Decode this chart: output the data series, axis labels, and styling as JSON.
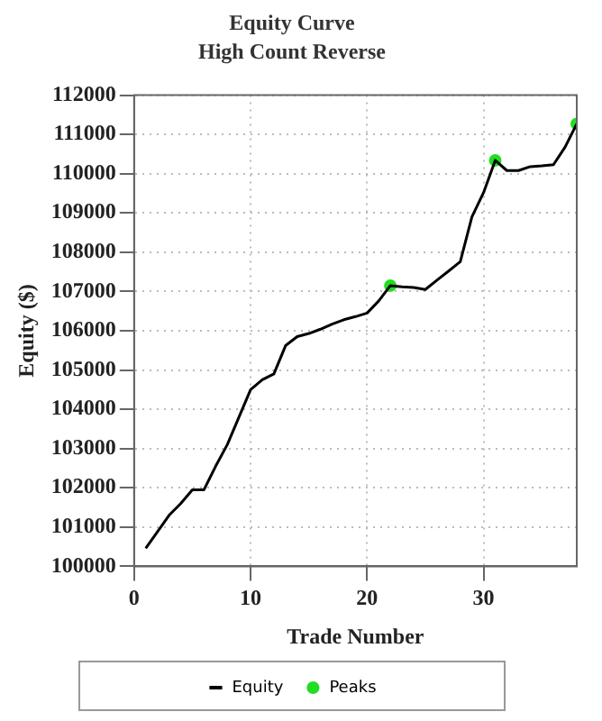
{
  "chart_data": {
    "type": "line",
    "title": "Equity Curve",
    "subtitle": "High Count Reverse",
    "xlabel": "Trade Number",
    "ylabel": "Equity ($)",
    "series": [
      {
        "name": "Equity",
        "type": "line",
        "color": "#000000",
        "x": [
          1,
          2,
          3,
          4,
          5,
          6,
          7,
          8,
          9,
          10,
          11,
          12,
          13,
          14,
          15,
          16,
          17,
          18,
          19,
          20,
          21,
          22,
          23,
          24,
          25,
          26,
          27,
          28,
          29,
          30,
          31,
          32,
          33,
          34,
          35,
          36,
          37,
          38
        ],
        "values": [
          100460,
          100880,
          101300,
          101600,
          101950,
          101950,
          102550,
          103100,
          103800,
          104500,
          104750,
          104900,
          105620,
          105850,
          105930,
          106040,
          106170,
          106280,
          106360,
          106450,
          106760,
          107150,
          107120,
          107100,
          107050,
          107290,
          107520,
          107760,
          108900,
          109520,
          110340,
          110080,
          110080,
          110180,
          110200,
          110230,
          110680,
          111270
        ],
        "marker": "none"
      },
      {
        "name": "Peaks",
        "type": "scatter",
        "color": "#22dd22",
        "x": [
          22,
          31,
          38
        ],
        "values": [
          107150,
          110340,
          111270
        ],
        "marker": "circle"
      }
    ],
    "xlim": [
      0,
      38
    ],
    "xticks": [
      0,
      10,
      20,
      30
    ],
    "ylim": [
      100000,
      112000
    ],
    "yticks": [
      100000,
      101000,
      102000,
      103000,
      104000,
      105000,
      106000,
      107000,
      108000,
      109000,
      110000,
      111000,
      112000
    ],
    "grid": true,
    "legend": "bottom"
  }
}
